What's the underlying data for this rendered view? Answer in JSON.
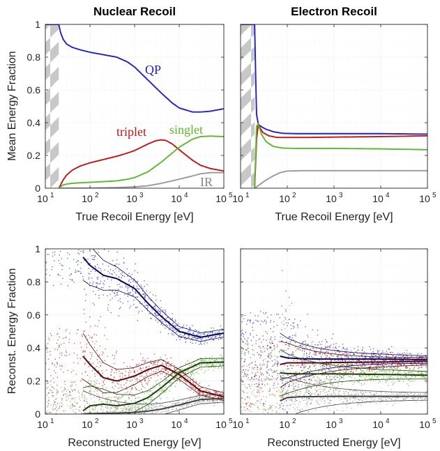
{
  "colors": {
    "QP": "#1f1fd0",
    "triplet": "#c41414",
    "singlet": "#5ab82a",
    "IR": "#999999",
    "hatch": "#c8c8c8"
  },
  "chart_data": [
    {
      "id": "nr-true",
      "type": "line",
      "title": "Nuclear Recoil",
      "xlabel": "True Recoil Energy [eV]",
      "ylabel": "Mean Energy Fraction",
      "xscale": "log",
      "xlim": [
        10,
        100000
      ],
      "ylim": [
        0,
        1
      ],
      "xticks": [
        "10",
        "10",
        "10",
        "10",
        "10"
      ],
      "xtick_exp": [
        "1",
        "2",
        "3",
        "4",
        "5"
      ],
      "yticks": [
        "0",
        "0.2",
        "0.4",
        "0.6",
        "0.8",
        "1"
      ],
      "grid": true,
      "hatched_region": [
        10,
        20
      ],
      "series": [
        {
          "name": "QP",
          "color": "#1f1fd0",
          "x": [
            10,
            20,
            22,
            25,
            30,
            40,
            60,
            100,
            200,
            400,
            700,
            1000,
            2000,
            4000,
            7000,
            10000,
            20000,
            30000,
            50000,
            100000
          ],
          "y": [
            1,
            1,
            0.95,
            0.91,
            0.88,
            0.86,
            0.845,
            0.83,
            0.815,
            0.8,
            0.77,
            0.74,
            0.66,
            0.58,
            0.52,
            0.49,
            0.465,
            0.465,
            0.47,
            0.485
          ]
        },
        {
          "name": "triplet",
          "color": "#c41414",
          "x": [
            20,
            22,
            25,
            30,
            40,
            60,
            100,
            200,
            400,
            700,
            1000,
            2000,
            3000,
            4000,
            5000,
            7000,
            10000,
            20000,
            30000,
            50000,
            100000
          ],
          "y": [
            0,
            0.02,
            0.05,
            0.08,
            0.11,
            0.135,
            0.155,
            0.175,
            0.195,
            0.215,
            0.23,
            0.27,
            0.29,
            0.295,
            0.292,
            0.27,
            0.235,
            0.17,
            0.14,
            0.12,
            0.105
          ]
        },
        {
          "name": "singlet",
          "color": "#5ab82a",
          "x": [
            20,
            25,
            30,
            40,
            60,
            100,
            200,
            400,
            700,
            1000,
            2000,
            4000,
            7000,
            10000,
            20000,
            30000,
            50000,
            100000
          ],
          "y": [
            0,
            0.02,
            0.025,
            0.03,
            0.033,
            0.036,
            0.04,
            0.045,
            0.055,
            0.065,
            0.1,
            0.16,
            0.215,
            0.25,
            0.3,
            0.315,
            0.318,
            0.315
          ]
        },
        {
          "name": "IR",
          "color": "#999999",
          "x": [
            20,
            100,
            400,
            1000,
            2000,
            4000,
            7000,
            10000,
            20000,
            30000,
            50000,
            100000
          ],
          "y": [
            0,
            0.001,
            0.004,
            0.008,
            0.015,
            0.03,
            0.045,
            0.055,
            0.075,
            0.088,
            0.095,
            0.095
          ]
        }
      ]
    },
    {
      "id": "er-true",
      "type": "line",
      "title": "Electron Recoil",
      "xlabel": "True Recoil Energy [eV]",
      "ylabel": "",
      "xscale": "log",
      "xlim": [
        10,
        100000
      ],
      "ylim": [
        0,
        1
      ],
      "xticks": [
        "10",
        "10",
        "10",
        "10",
        "10"
      ],
      "xtick_exp": [
        "1",
        "2",
        "3",
        "4",
        "5"
      ],
      "grid": true,
      "hatched_region": [
        10,
        20
      ],
      "series": [
        {
          "name": "QP",
          "color": "#1f1fd0",
          "x": [
            10,
            20,
            21,
            22,
            24,
            28,
            35,
            50,
            80,
            150,
            1000,
            10000,
            100000
          ],
          "y": [
            1,
            1,
            0.7,
            0.45,
            0.39,
            0.375,
            0.36,
            0.345,
            0.335,
            0.333,
            0.333,
            0.333,
            0.33
          ]
        },
        {
          "name": "triplet",
          "color": "#c41414",
          "x": [
            20,
            21,
            22,
            24,
            26,
            30,
            40,
            60,
            100,
            300,
            1000,
            10000,
            100000
          ],
          "y": [
            0,
            0.15,
            0.3,
            0.39,
            0.37,
            0.34,
            0.32,
            0.31,
            0.31,
            0.31,
            0.312,
            0.315,
            0.32
          ]
        },
        {
          "name": "singlet",
          "color": "#5ab82a",
          "x": [
            20,
            21,
            22,
            24,
            28,
            35,
            50,
            80,
            150,
            1000,
            10000,
            100000
          ],
          "y": [
            0,
            0.2,
            0.38,
            0.39,
            0.33,
            0.285,
            0.255,
            0.245,
            0.243,
            0.243,
            0.24,
            0.235
          ]
        },
        {
          "name": "IR",
          "color": "#999999",
          "x": [
            20,
            25,
            35,
            50,
            70,
            100,
            200,
            1000,
            10000,
            100000
          ],
          "y": [
            0,
            0.02,
            0.05,
            0.075,
            0.095,
            0.105,
            0.107,
            0.107,
            0.107,
            0.107
          ]
        }
      ]
    },
    {
      "id": "nr-reco",
      "type": "scatter",
      "xlabel": "Reconstructed Energy [eV]",
      "ylabel": "Reconst. Energy Fraction",
      "xscale": "log",
      "xlim": [
        10,
        100000
      ],
      "ylim": [
        0,
        1
      ],
      "xticks": [
        "10",
        "10",
        "10",
        "10",
        "10"
      ],
      "xtick_exp": [
        "1",
        "2",
        "3",
        "4",
        "5"
      ],
      "yticks": [
        "0",
        "0.2",
        "0.4",
        "0.6",
        "0.8",
        "1"
      ],
      "grid": true,
      "series": [
        {
          "name": "QP",
          "color": "#1f1fd0",
          "x": [
            70,
            100,
            200,
            400,
            1000,
            2000,
            4000,
            10000,
            30000,
            100000
          ],
          "y": [
            0.95,
            0.9,
            0.84,
            0.82,
            0.76,
            0.67,
            0.59,
            0.5,
            0.465,
            0.49
          ]
        },
        {
          "name": "triplet",
          "color": "#c41414",
          "x": [
            70,
            100,
            200,
            400,
            1000,
            2000,
            4000,
            10000,
            30000,
            100000
          ],
          "y": [
            0.35,
            0.3,
            0.22,
            0.2,
            0.23,
            0.27,
            0.295,
            0.24,
            0.14,
            0.105
          ]
        },
        {
          "name": "singlet",
          "color": "#5ab82a",
          "x": [
            70,
            100,
            200,
            400,
            1000,
            2000,
            4000,
            10000,
            30000,
            100000
          ],
          "y": [
            0.02,
            0.05,
            0.06,
            0.05,
            0.065,
            0.1,
            0.16,
            0.25,
            0.31,
            0.315
          ]
        },
        {
          "name": "IR",
          "color": "#999999",
          "x": [
            70,
            100,
            400,
            1000,
            2000,
            4000,
            10000,
            30000,
            100000
          ],
          "y": [
            0.001,
            0.003,
            0.006,
            0.01,
            0.018,
            0.03,
            0.055,
            0.088,
            0.095
          ]
        }
      ]
    },
    {
      "id": "er-reco",
      "type": "scatter",
      "xlabel": "Reconstructed Energy [eV]",
      "ylabel": "",
      "xscale": "log",
      "xlim": [
        10,
        100000
      ],
      "ylim": [
        0,
        1
      ],
      "xticks": [
        "10",
        "10",
        "10",
        "10",
        "10"
      ],
      "xtick_exp": [
        "1",
        "2",
        "3",
        "4",
        "5"
      ],
      "grid": true,
      "series": [
        {
          "name": "QP",
          "color": "#1f1fd0",
          "x": [
            70,
            100,
            200,
            500,
            1000,
            10000,
            100000
          ],
          "y": [
            0.35,
            0.34,
            0.335,
            0.333,
            0.333,
            0.333,
            0.33
          ]
        },
        {
          "name": "triplet",
          "color": "#c41414",
          "x": [
            70,
            100,
            200,
            500,
            1000,
            10000,
            100000
          ],
          "y": [
            0.3,
            0.31,
            0.31,
            0.31,
            0.312,
            0.315,
            0.32
          ]
        },
        {
          "name": "singlet",
          "color": "#5ab82a",
          "x": [
            70,
            100,
            200,
            500,
            1000,
            10000,
            100000
          ],
          "y": [
            0.25,
            0.245,
            0.243,
            0.243,
            0.243,
            0.24,
            0.235
          ]
        },
        {
          "name": "IR",
          "color": "#999999",
          "x": [
            70,
            100,
            200,
            1000,
            10000,
            100000
          ],
          "y": [
            0.08,
            0.1,
            0.105,
            0.107,
            0.107,
            0.107
          ]
        }
      ]
    }
  ],
  "labels": {
    "nr_qp": "QP",
    "nr_triplet": "triplet",
    "nr_singlet": "singlet",
    "nr_ir": "IR"
  }
}
